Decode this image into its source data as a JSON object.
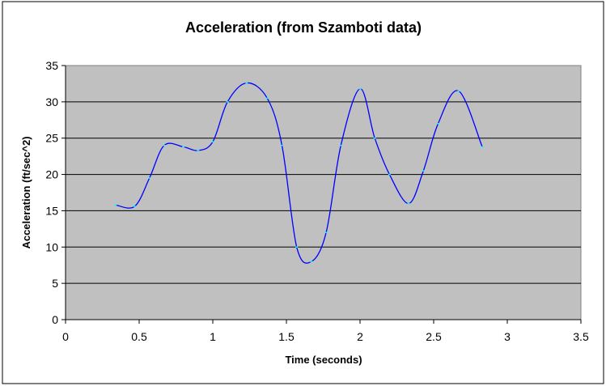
{
  "chart_data": {
    "type": "line",
    "title": "Acceleration (from Szamboti data)",
    "xlabel": "Time (seconds)",
    "ylabel": "Acceleration (ft/sec^2)",
    "xlim": [
      0,
      3.5
    ],
    "ylim": [
      0,
      35
    ],
    "x_ticks": [
      "0",
      "0.5",
      "1",
      "1.5",
      "2",
      "2.5",
      "3",
      "3.5"
    ],
    "y_ticks": [
      "0",
      "5",
      "10",
      "15",
      "20",
      "25",
      "30",
      "35"
    ],
    "grid": "horizontal",
    "legend": "none",
    "plot_background": "#c0c0c0",
    "line_color": "#0000ff",
    "marker_color": "#00ffff",
    "series": [
      {
        "x": [
          0.34,
          0.47,
          0.57,
          0.67,
          0.8,
          0.9,
          1.0,
          1.1,
          1.23,
          1.37,
          1.47,
          1.57,
          1.67,
          1.77,
          1.87,
          2.0,
          2.1,
          2.2,
          2.33,
          2.43,
          2.53,
          2.67,
          2.83
        ],
        "y": [
          15.8,
          15.6,
          19.5,
          24.0,
          23.8,
          23.3,
          24.5,
          30.0,
          32.6,
          30.5,
          24.0,
          10.0,
          8.0,
          12.0,
          24.0,
          31.8,
          25.0,
          20.0,
          16.0,
          20.5,
          27.0,
          31.5,
          23.8
        ]
      }
    ]
  }
}
